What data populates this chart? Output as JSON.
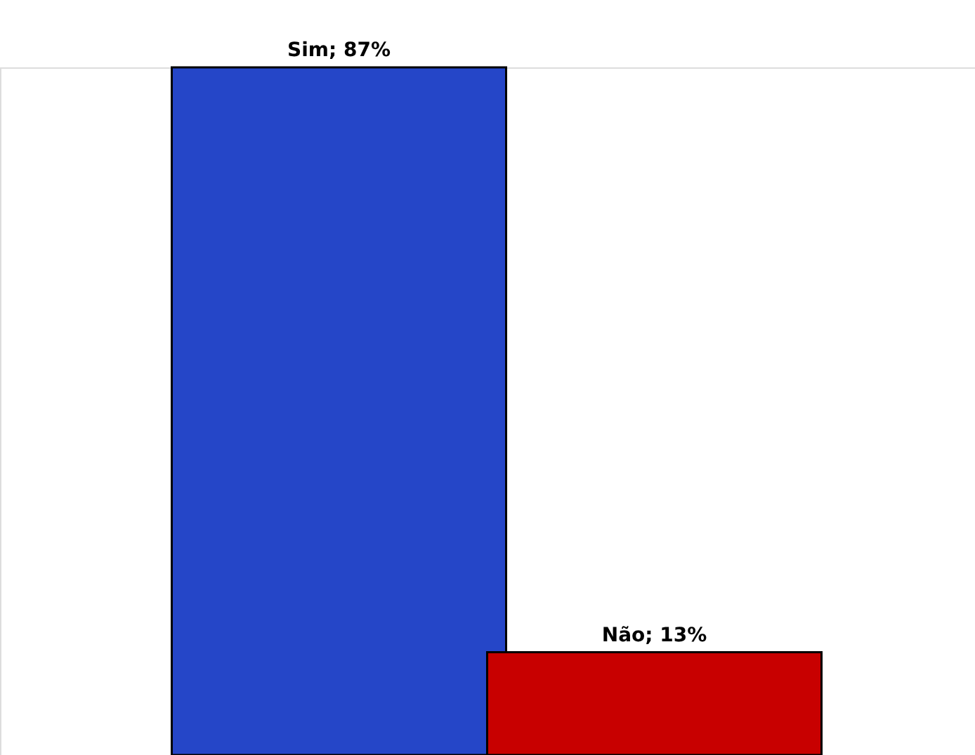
{
  "chart_data": {
    "type": "bar",
    "categories": [
      null,
      null
    ],
    "values": [
      87,
      13
    ],
    "colors": [
      "#2546c8",
      "#c80000"
    ],
    "value_labels": [
      "Sim; 87%",
      "Não; 13%"
    ],
    "ylim": [
      0,
      87
    ],
    "tick_labels": false
  }
}
